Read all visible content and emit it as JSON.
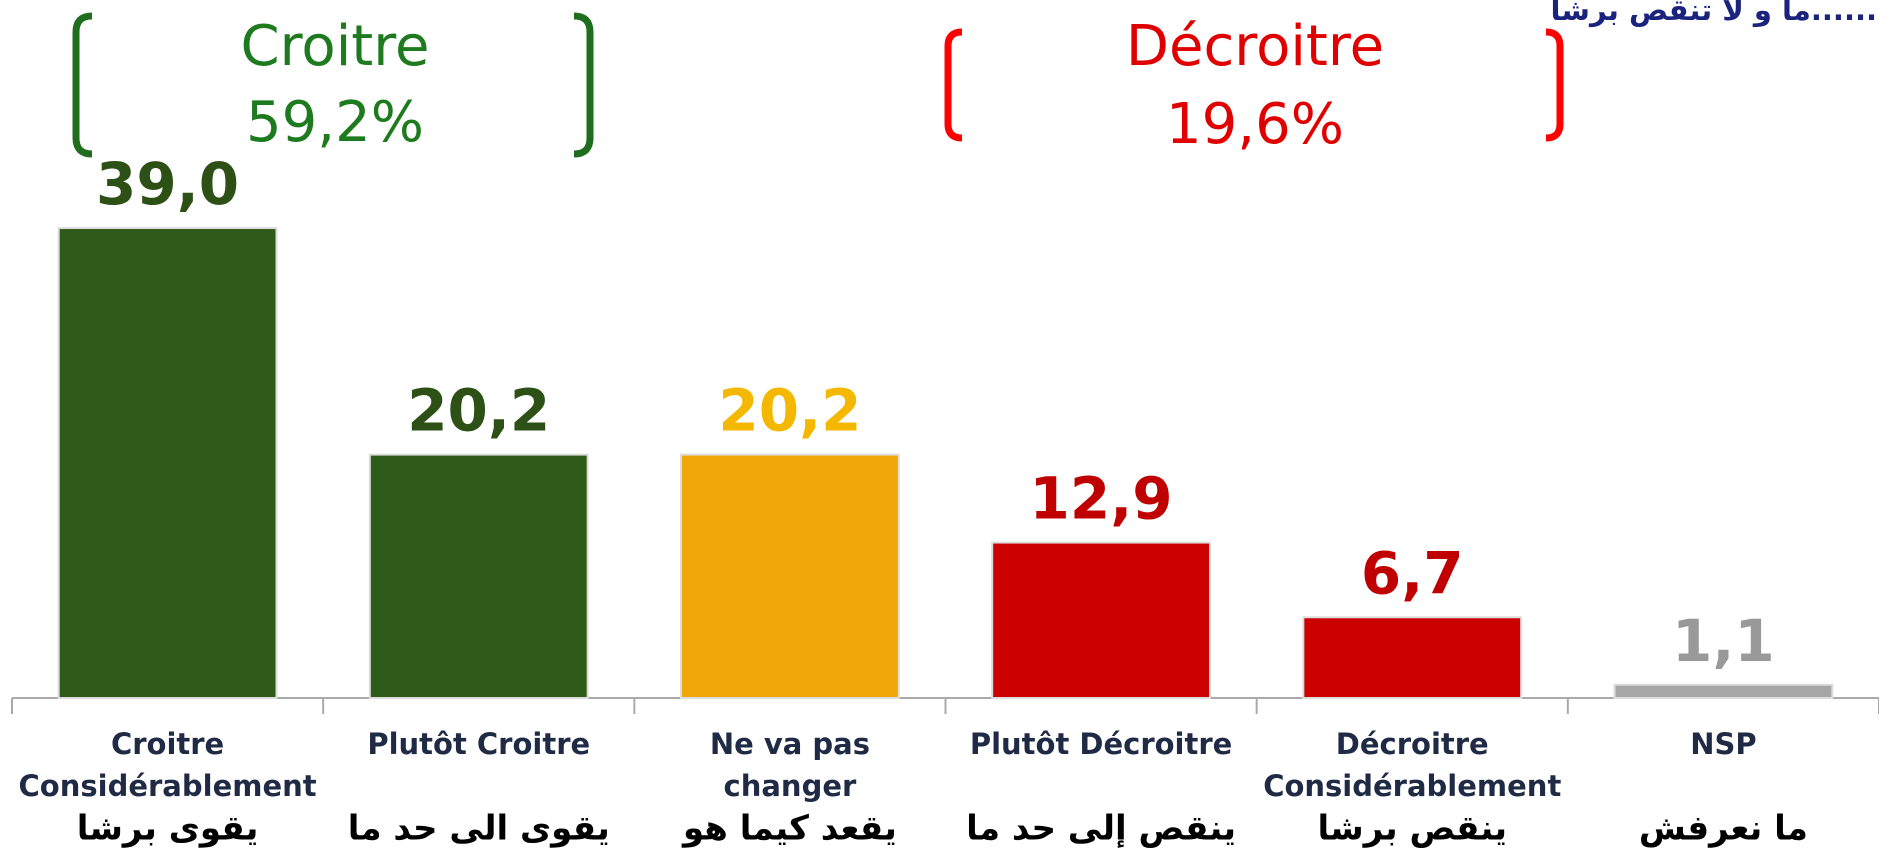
{
  "chart_data": {
    "type": "bar",
    "annotations": [
      "Croitre",
      "59,2%",
      "Décroitre",
      "19,6%",
      "ما و لا تنقص برشا......"
    ],
    "categories": [
      [
        "Croitre",
        "Considérablement"
      ],
      [
        "Plutôt Croitre"
      ],
      [
        "Ne va pas",
        "changer"
      ],
      [
        "Plutôt Décroitre"
      ],
      [
        "Décroitre",
        "Considérablement"
      ],
      [
        "NSP"
      ]
    ],
    "categories_ar": [
      "يقوى برشا",
      "يقوى الى حد ما",
      "يقعد كيما هو",
      "ينقص إلى حد ما",
      "ينقص برشا",
      "ما نعرفش"
    ],
    "values": [
      39.0,
      20.2,
      20.2,
      12.9,
      6.7,
      1.1
    ],
    "value_labels": [
      "39,0",
      "20,2",
      "20,2",
      "12,9",
      "6,7",
      "1,1"
    ],
    "colors": [
      "#2e5a1a",
      "#2e5a1a",
      "#f0a808",
      "#cc0000",
      "#cc0000",
      "#a6a6a6"
    ],
    "label_colors": [
      "#2d5016",
      "#2d5016",
      "#f5b800",
      "#c00000",
      "#c00000",
      "#999999"
    ],
    "ylim": [
      0,
      40
    ]
  }
}
